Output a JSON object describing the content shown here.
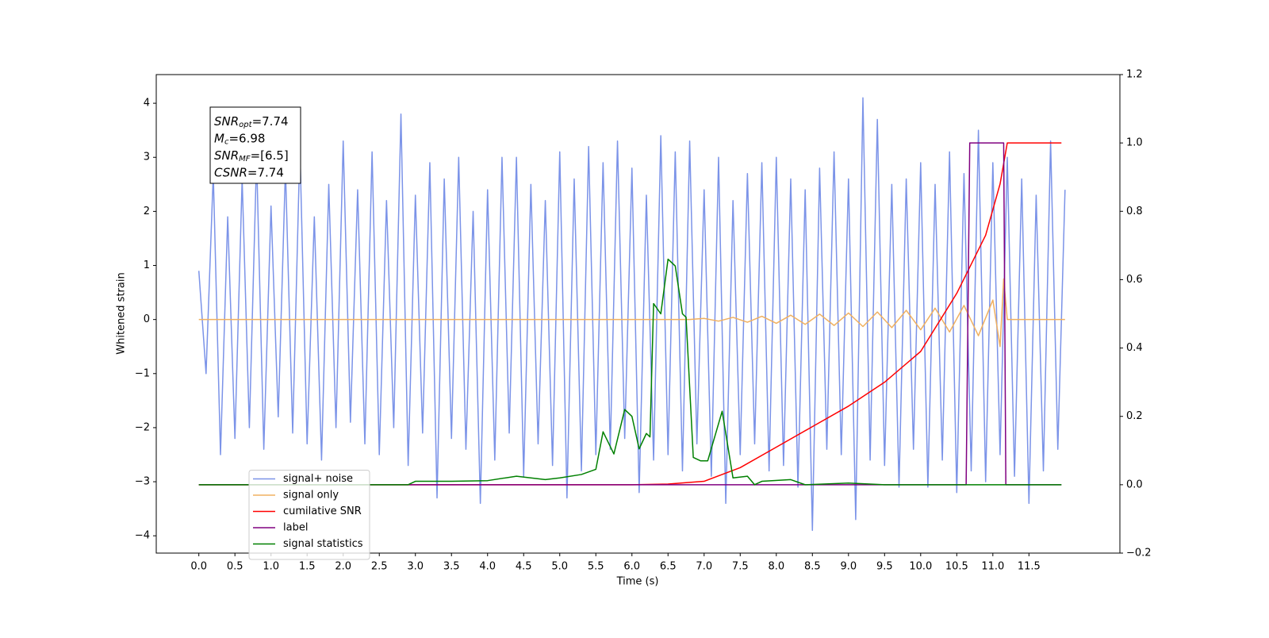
{
  "chart_data": {
    "type": "line",
    "xlabel": "Time (s)",
    "ylabel": "Whitened strain",
    "xlim": [
      -0.59,
      12.76
    ],
    "ylim": [
      -4.32,
      4.53
    ],
    "y2lim": [
      -0.2,
      1.2
    ],
    "xticks": [
      {
        "value": 0,
        "label": "0.0"
      },
      {
        "value": 0.5,
        "label": "0.5"
      },
      {
        "value": 1,
        "label": "1.0"
      },
      {
        "value": 1.5,
        "label": "1.5"
      },
      {
        "value": 2,
        "label": "2.0"
      },
      {
        "value": 2.5,
        "label": "2.5"
      },
      {
        "value": 3,
        "label": "3.0"
      },
      {
        "value": 3.5,
        "label": "3.5"
      },
      {
        "value": 4,
        "label": "4.0"
      },
      {
        "value": 4.5,
        "label": "4.5"
      },
      {
        "value": 5,
        "label": "5.0"
      },
      {
        "value": 5.5,
        "label": "5.5"
      },
      {
        "value": 6,
        "label": "6.0"
      },
      {
        "value": 6.5,
        "label": "6.5"
      },
      {
        "value": 7,
        "label": "7.0"
      },
      {
        "value": 7.5,
        "label": "7.5"
      },
      {
        "value": 8,
        "label": "8.0"
      },
      {
        "value": 8.5,
        "label": "8.5"
      },
      {
        "value": 9,
        "label": "9.0"
      },
      {
        "value": 9.5,
        "label": "9.5"
      },
      {
        "value": 10,
        "label": "10.0"
      },
      {
        "value": 10.5,
        "label": "10.5"
      },
      {
        "value": 11,
        "label": "11.0"
      },
      {
        "value": 11.5,
        "label": "11.5"
      }
    ],
    "yticks": [
      {
        "value": -4,
        "label": "−4"
      },
      {
        "value": -3,
        "label": "−3"
      },
      {
        "value": -2,
        "label": "−2"
      },
      {
        "value": -1,
        "label": "−1"
      },
      0,
      1,
      2,
      3,
      4
    ],
    "y2ticks": [
      {
        "value": -0.2,
        "label": "−0.2"
      },
      {
        "value": 0,
        "label": "0.0"
      },
      {
        "value": 0.2,
        "label": "0.2"
      },
      {
        "value": 0.4,
        "label": "0.4"
      },
      {
        "value": 0.6,
        "label": "0.6"
      },
      {
        "value": 0.8,
        "label": "0.8"
      },
      {
        "value": 1,
        "label": "1.0"
      },
      {
        "value": 1.2,
        "label": "1.2"
      }
    ],
    "grid": false,
    "legend": "lower left",
    "annotation": [
      {
        "main": "SNR",
        "sub": "opt",
        "rest": "=7.74"
      },
      {
        "main": "M",
        "sub": "c",
        "rest": "=6.98"
      },
      {
        "main": "SNR",
        "sub": "MF",
        "rest": "=[6.5]"
      },
      {
        "main": "CSNR",
        "sub": null,
        "rest": "=7.74"
      }
    ],
    "series": [
      {
        "name": "signal+ noise",
        "color": "#7b93e8",
        "x": [
          0,
          0.1,
          0.2,
          0.3,
          0.4,
          0.5,
          0.6,
          0.7,
          0.8,
          0.9,
          1,
          1.1,
          1.2,
          1.3,
          1.4,
          1.5,
          1.6,
          1.7,
          1.8,
          1.9,
          2,
          2.1,
          2.2,
          2.3,
          2.4,
          2.5,
          2.6,
          2.7,
          2.8,
          2.9,
          3,
          3.1,
          3.2,
          3.3,
          3.4,
          3.5,
          3.6,
          3.7,
          3.8,
          3.9,
          4,
          4.1,
          4.2,
          4.3,
          4.4,
          4.5,
          4.6,
          4.7,
          4.8,
          4.9,
          5,
          5.1,
          5.2,
          5.3,
          5.4,
          5.5,
          5.6,
          5.7,
          5.8,
          5.9,
          6,
          6.1,
          6.2,
          6.3,
          6.4,
          6.5,
          6.6,
          6.7,
          6.8,
          6.9,
          7,
          7.1,
          7.2,
          7.3,
          7.4,
          7.5,
          7.6,
          7.7,
          7.8,
          7.9,
          8,
          8.1,
          8.2,
          8.3,
          8.4,
          8.5,
          8.6,
          8.7,
          8.8,
          8.9,
          9,
          9.1,
          9.2,
          9.3,
          9.4,
          9.5,
          9.6,
          9.7,
          9.8,
          9.9,
          10,
          10.1,
          10.2,
          10.3,
          10.4,
          10.5,
          10.6,
          10.7,
          10.8,
          10.9,
          11,
          11.1,
          11.2,
          11.3,
          11.4,
          11.5,
          11.6,
          11.7,
          11.8,
          11.9,
          12
        ],
        "values": [
          0.9,
          -1.0,
          2.7,
          -2.5,
          1.9,
          -2.2,
          2.6,
          -2.0,
          3.0,
          -2.4,
          2.1,
          -1.8,
          2.8,
          -2.1,
          3.2,
          -2.3,
          1.9,
          -2.6,
          2.5,
          -2.0,
          3.3,
          -1.9,
          2.4,
          -2.3,
          3.1,
          -2.5,
          2.2,
          -2.0,
          3.8,
          -2.7,
          2.3,
          -2.1,
          2.9,
          -3.3,
          2.6,
          -2.2,
          3.0,
          -2.4,
          2.0,
          -3.4,
          2.4,
          -2.6,
          3.0,
          -2.1,
          3.0,
          -2.9,
          2.5,
          -2.3,
          2.2,
          -2.7,
          3.1,
          -3.3,
          2.6,
          -2.8,
          3.2,
          -2.5,
          2.9,
          -2.4,
          3.3,
          -2.2,
          2.8,
          -3.2,
          2.3,
          -2.6,
          3.4,
          -2.5,
          3.1,
          -2.8,
          3.3,
          -2.3,
          2.4,
          -2.9,
          3.0,
          -3.4,
          2.2,
          -2.5,
          2.7,
          -2.3,
          2.9,
          -2.8,
          3.0,
          -2.7,
          2.6,
          -3.1,
          2.4,
          -3.9,
          2.8,
          -2.4,
          3.1,
          -2.5,
          2.6,
          -3.7,
          4.1,
          -2.6,
          3.7,
          -2.7,
          2.5,
          -3.1,
          2.6,
          -2.4,
          2.9,
          -3.1,
          2.5,
          -2.6,
          3.1,
          -3.2,
          2.7,
          -2.8,
          3.5,
          -3.0,
          2.9,
          -2.5,
          3.0,
          -2.9,
          2.6,
          -3.4,
          2.3,
          -2.8,
          3.3,
          -2.4,
          2.4
        ]
      },
      {
        "name": "signal only",
        "color": "#f0b060",
        "x": [
          0,
          6.8,
          7.0,
          7.2,
          7.4,
          7.6,
          7.8,
          8.0,
          8.2,
          8.4,
          8.6,
          8.8,
          9.0,
          9.2,
          9.4,
          9.6,
          9.8,
          10.0,
          10.2,
          10.4,
          10.6,
          10.8,
          11.0,
          11.1,
          11.15,
          11.2,
          12.0
        ],
        "values": [
          0,
          0,
          0.02,
          -0.03,
          0.04,
          -0.05,
          0.06,
          -0.07,
          0.08,
          -0.09,
          0.1,
          -0.11,
          0.12,
          -0.13,
          0.14,
          -0.15,
          0.17,
          -0.19,
          0.21,
          -0.23,
          0.26,
          -0.3,
          0.36,
          -0.5,
          0.75,
          0,
          0
        ]
      },
      {
        "name": "cumilative SNR",
        "color": "#ff0000",
        "axis": "y2",
        "x": [
          0,
          6.0,
          6.5,
          7.0,
          7.5,
          8.0,
          8.5,
          9.0,
          9.5,
          10.0,
          10.5,
          10.9,
          11.1,
          11.2,
          11.95
        ],
        "values": [
          0,
          0,
          0.002,
          0.01,
          0.05,
          0.11,
          0.17,
          0.23,
          0.3,
          0.39,
          0.56,
          0.73,
          0.88,
          1.0,
          1.0
        ]
      },
      {
        "name": "label",
        "color": "#800080",
        "axis": "y2",
        "x": [
          0,
          10.63,
          10.68,
          11.15,
          11.18,
          11.95
        ],
        "values": [
          0,
          0,
          1.0,
          1.0,
          0,
          0
        ]
      },
      {
        "name": "signal statistics",
        "color": "#008000",
        "axis": "y2",
        "x": [
          0,
          2.9,
          3.0,
          3.5,
          4.0,
          4.4,
          4.8,
          5.0,
          5.3,
          5.5,
          5.6,
          5.75,
          5.9,
          6.0,
          6.1,
          6.2,
          6.25,
          6.3,
          6.4,
          6.5,
          6.6,
          6.7,
          6.75,
          6.85,
          6.95,
          7.05,
          7.25,
          7.4,
          7.6,
          7.7,
          7.8,
          8.2,
          8.4,
          9.0,
          9.5,
          11.95
        ],
        "values": [
          0,
          0,
          0.01,
          0.01,
          0.012,
          0.025,
          0.015,
          0.02,
          0.03,
          0.045,
          0.155,
          0.09,
          0.22,
          0.2,
          0.105,
          0.15,
          0.14,
          0.53,
          0.5,
          0.66,
          0.64,
          0.5,
          0.49,
          0.08,
          0.07,
          0.07,
          0.215,
          0.02,
          0.025,
          0.0,
          0.01,
          0.015,
          0.0,
          0.005,
          0,
          0
        ]
      }
    ]
  }
}
